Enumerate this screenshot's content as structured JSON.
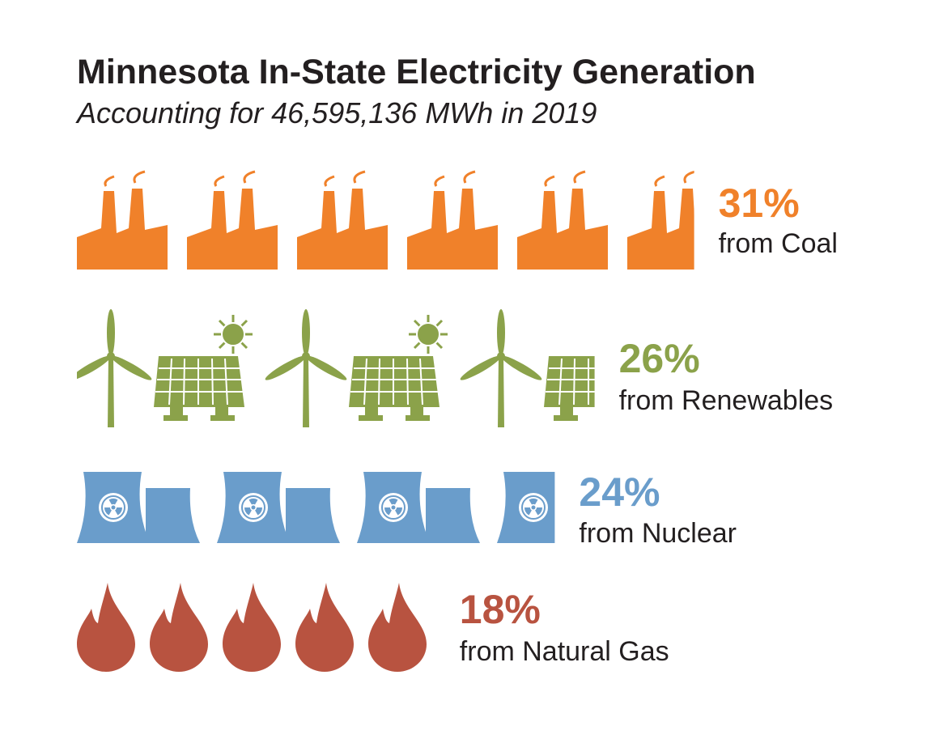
{
  "chart_data": {
    "type": "pictogram",
    "title": "Minnesota In-State Electricity Generation",
    "subtitle": "Accounting for 46,595,136 MWh in 2019",
    "categories": [
      "from Coal",
      "from Renewables",
      "from Nuclear",
      "from Natural Gas"
    ],
    "values": [
      31,
      26,
      24,
      18
    ],
    "value_labels": [
      "31%",
      "26%",
      "24%",
      "18%"
    ],
    "colors": [
      "#f0812a",
      "#8ba24a",
      "#6a9dcb",
      "#b85340"
    ]
  }
}
